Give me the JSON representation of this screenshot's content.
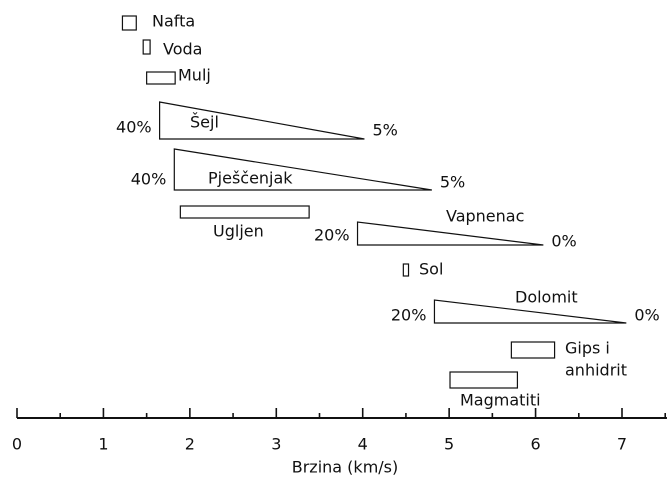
{
  "chart_data": {
    "type": "range",
    "xlabel": "Brzina (km/s)",
    "xlim": [
      0,
      7.52
    ],
    "xticks": [
      0,
      1,
      2,
      3,
      4,
      5,
      6,
      7
    ],
    "minor_xticks": [
      0.5,
      1.5,
      2.5,
      3.5,
      4.5,
      5.5,
      6.5,
      7.5
    ],
    "items": [
      {
        "label": [
          "Nafta"
        ],
        "shape": "box",
        "range": [
          1.22,
          1.38
        ]
      },
      {
        "label": [
          "Voda"
        ],
        "shape": "box",
        "range": [
          1.46,
          1.54
        ]
      },
      {
        "label": [
          "Mulj"
        ],
        "shape": "box",
        "range": [
          1.5,
          1.83
        ]
      },
      {
        "label": [
          "Šejl"
        ],
        "shape": "wedge",
        "range": [
          1.65,
          4.02
        ],
        "ends": [
          "40%",
          "5%"
        ]
      },
      {
        "label": [
          "Pješčenjak"
        ],
        "shape": "wedge",
        "range": [
          1.82,
          4.8
        ],
        "ends": [
          "40%",
          "5%"
        ]
      },
      {
        "label": [
          "Ugljen"
        ],
        "shape": "box",
        "range": [
          1.89,
          3.38
        ]
      },
      {
        "label": [
          "Vapnenac"
        ],
        "shape": "wedge",
        "range": [
          3.94,
          6.09
        ],
        "ends": [
          "20%",
          "0%"
        ]
      },
      {
        "label": [
          "Sol"
        ],
        "shape": "box",
        "range": [
          4.47,
          4.53
        ]
      },
      {
        "label": [
          "Dolomit"
        ],
        "shape": "wedge",
        "range": [
          4.83,
          7.05
        ],
        "ends": [
          "20%",
          "0%"
        ]
      },
      {
        "label": [
          "Gips i",
          "anhidrit"
        ],
        "shape": "box",
        "range": [
          5.72,
          6.22
        ]
      },
      {
        "label": [
          "Magmatiti"
        ],
        "shape": "box",
        "range": [
          5.01,
          5.79
        ]
      }
    ]
  }
}
